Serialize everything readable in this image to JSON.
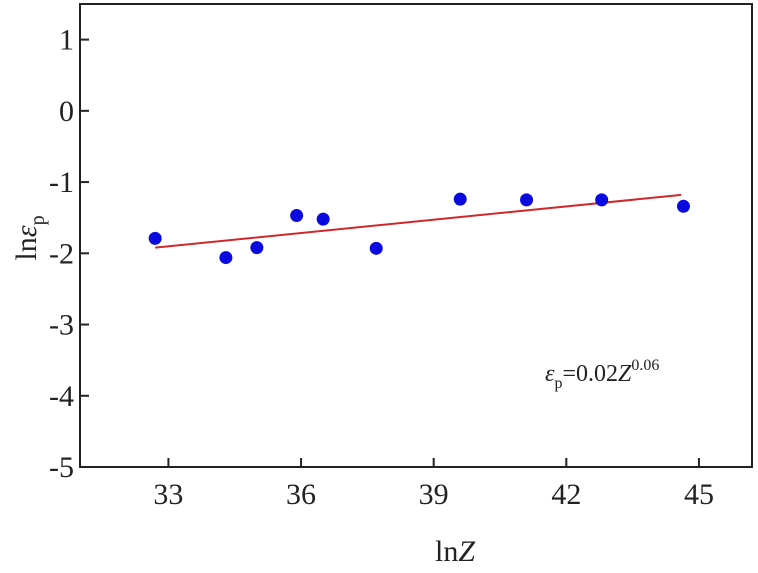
{
  "chart_data": {
    "type": "scatter",
    "x_axis": {
      "label_main": "ln",
      "label_var": "Z",
      "range": [
        31,
        46.2
      ],
      "ticks": [
        33,
        36,
        39,
        42,
        45
      ],
      "tick_labels": [
        "33",
        "36",
        "39",
        "42",
        "45"
      ]
    },
    "y_axis": {
      "label_main": "ln",
      "label_var": "ε",
      "label_sub": "p",
      "range": [
        -5,
        1.5
      ],
      "ticks": [
        1,
        0,
        -1,
        -2,
        -3,
        -4,
        -5
      ],
      "tick_labels": [
        "1",
        "0",
        "-1",
        "-2",
        "-3",
        "-4",
        "-5"
      ]
    },
    "grid": false,
    "points": [
      {
        "x": 32.7,
        "y": -1.79
      },
      {
        "x": 34.3,
        "y": -2.06
      },
      {
        "x": 35.0,
        "y": -1.92
      },
      {
        "x": 35.9,
        "y": -1.47
      },
      {
        "x": 36.5,
        "y": -1.52
      },
      {
        "x": 37.7,
        "y": -1.93
      },
      {
        "x": 39.6,
        "y": -1.24
      },
      {
        "x": 41.1,
        "y": -1.25
      },
      {
        "x": 42.8,
        "y": -1.25
      },
      {
        "x": 44.65,
        "y": -1.34
      }
    ],
    "fit_line": {
      "x": [
        32.7,
        44.6
      ],
      "y": [
        -1.92,
        -1.18
      ]
    },
    "point_color": "#0a0ae0",
    "line_color": "#d0282a",
    "annotation": {
      "var": "ε",
      "sub": "p",
      "mid": "=0.02",
      "var2": "Z",
      "sup": "0.06"
    }
  }
}
